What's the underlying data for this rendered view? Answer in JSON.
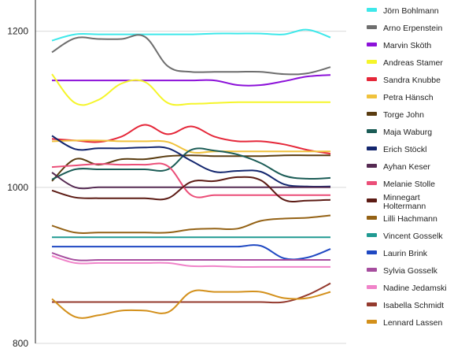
{
  "chart_data": {
    "type": "line",
    "title": "",
    "xlabel": "",
    "ylabel": "",
    "ylim": [
      800,
      1240
    ],
    "yticks": [
      800,
      1000,
      1200
    ],
    "grid": true,
    "legend": "right",
    "x": [
      0,
      1,
      2,
      3,
      4,
      5,
      6,
      7,
      8,
      9,
      10,
      11,
      12
    ],
    "series": [
      {
        "name": "Jörn Bohlmann",
        "color": "#3ee8ea",
        "values": [
          1188,
          1196,
          1196,
          1196,
          1196,
          1196,
          1196,
          1197,
          1197,
          1197,
          1196,
          1202,
          1192
        ]
      },
      {
        "name": "Arno Erpenstein",
        "color": "#6e6e6e",
        "values": [
          1173,
          1191,
          1190,
          1190,
          1193,
          1155,
          1148,
          1148,
          1148,
          1148,
          1145,
          1146,
          1154
        ]
      },
      {
        "name": "Marvin Sköth",
        "color": "#8c11d9",
        "values": [
          1137,
          1137,
          1137,
          1137,
          1137,
          1137,
          1137,
          1137,
          1131,
          1131,
          1136,
          1142,
          1144
        ]
      },
      {
        "name": "Andreas Stamer",
        "color": "#f5f52a",
        "values": [
          1145,
          1108,
          1112,
          1133,
          1135,
          1108,
          1107,
          1108,
          1109,
          1109,
          1109,
          1109,
          1109
        ]
      },
      {
        "name": "Sandra Knubbe",
        "color": "#e52739",
        "values": [
          1062,
          1060,
          1058,
          1065,
          1080,
          1068,
          1078,
          1065,
          1059,
          1059,
          1055,
          1048,
          1043
        ]
      },
      {
        "name": "Petra Hänsch",
        "color": "#f0c23c",
        "values": [
          1059,
          1060,
          1060,
          1059,
          1059,
          1058,
          1045,
          1046,
          1046,
          1046,
          1046,
          1046,
          1046
        ]
      },
      {
        "name": "Torge John",
        "color": "#5a3c11",
        "values": [
          1008,
          1036,
          1029,
          1036,
          1036,
          1040,
          1041,
          1040,
          1040,
          1040,
          1041,
          1041,
          1041
        ]
      },
      {
        "name": "Maja Waburg",
        "color": "#1b5c56",
        "values": [
          1010,
          1023,
          1023,
          1023,
          1023,
          1023,
          1048,
          1047,
          1042,
          1031,
          1015,
          1011,
          1012
        ]
      },
      {
        "name": "Erich Stöckl",
        "color": "#13266e",
        "values": [
          1066,
          1049,
          1050,
          1050,
          1051,
          1050,
          1034,
          1020,
          1021,
          1020,
          1004,
          1001,
          1001
        ]
      },
      {
        "name": "Ayhan Keser",
        "color": "#552a52",
        "values": [
          1019,
          1000,
          1000,
          1000,
          1000,
          1000,
          1000,
          1000,
          1000,
          1000,
          1000,
          1000,
          1000
        ]
      },
      {
        "name": "Melanie Stolle",
        "color": "#eb4e78",
        "values": [
          1026,
          1028,
          1030,
          1029,
          1029,
          1027,
          990,
          990,
          990,
          990,
          990,
          990,
          990
        ]
      },
      {
        "name": "Minnegart Holtermann",
        "color": "#5c1b14",
        "values": [
          996,
          987,
          986,
          986,
          986,
          986,
          1007,
          1008,
          1013,
          1009,
          984,
          983,
          984
        ]
      },
      {
        "name": "Lilli Hachmann",
        "color": "#946215",
        "values": [
          951,
          942,
          942,
          942,
          942,
          942,
          946,
          947,
          947,
          957,
          960,
          961,
          964
        ]
      },
      {
        "name": "Vincent Gosselk",
        "color": "#209a92",
        "values": [
          936,
          936,
          936,
          936,
          936,
          936,
          936,
          936,
          936,
          936,
          936,
          936,
          936
        ]
      },
      {
        "name": "Laurin Brink",
        "color": "#1f48c2",
        "values": [
          924,
          924,
          924,
          924,
          924,
          924,
          924,
          924,
          924,
          925,
          909,
          910,
          921
        ]
      },
      {
        "name": "Sylvia Gosselk",
        "color": "#a64d9e",
        "values": [
          916,
          907,
          907,
          907,
          907,
          907,
          907,
          907,
          907,
          907,
          907,
          907,
          907
        ]
      },
      {
        "name": "Nadine Jedamski",
        "color": "#f083c9",
        "values": [
          912,
          903,
          903,
          903,
          903,
          903,
          899,
          899,
          898,
          898,
          898,
          898,
          898
        ]
      },
      {
        "name": "Isabella Schmidt",
        "color": "#943a2e",
        "values": [
          853,
          853,
          853,
          853,
          853,
          853,
          853,
          853,
          853,
          853,
          853,
          862,
          877
        ]
      },
      {
        "name": "Lennard Lassen",
        "color": "#d3901b",
        "values": [
          857,
          834,
          836,
          842,
          842,
          840,
          866,
          866,
          866,
          866,
          858,
          858,
          866
        ]
      }
    ]
  }
}
